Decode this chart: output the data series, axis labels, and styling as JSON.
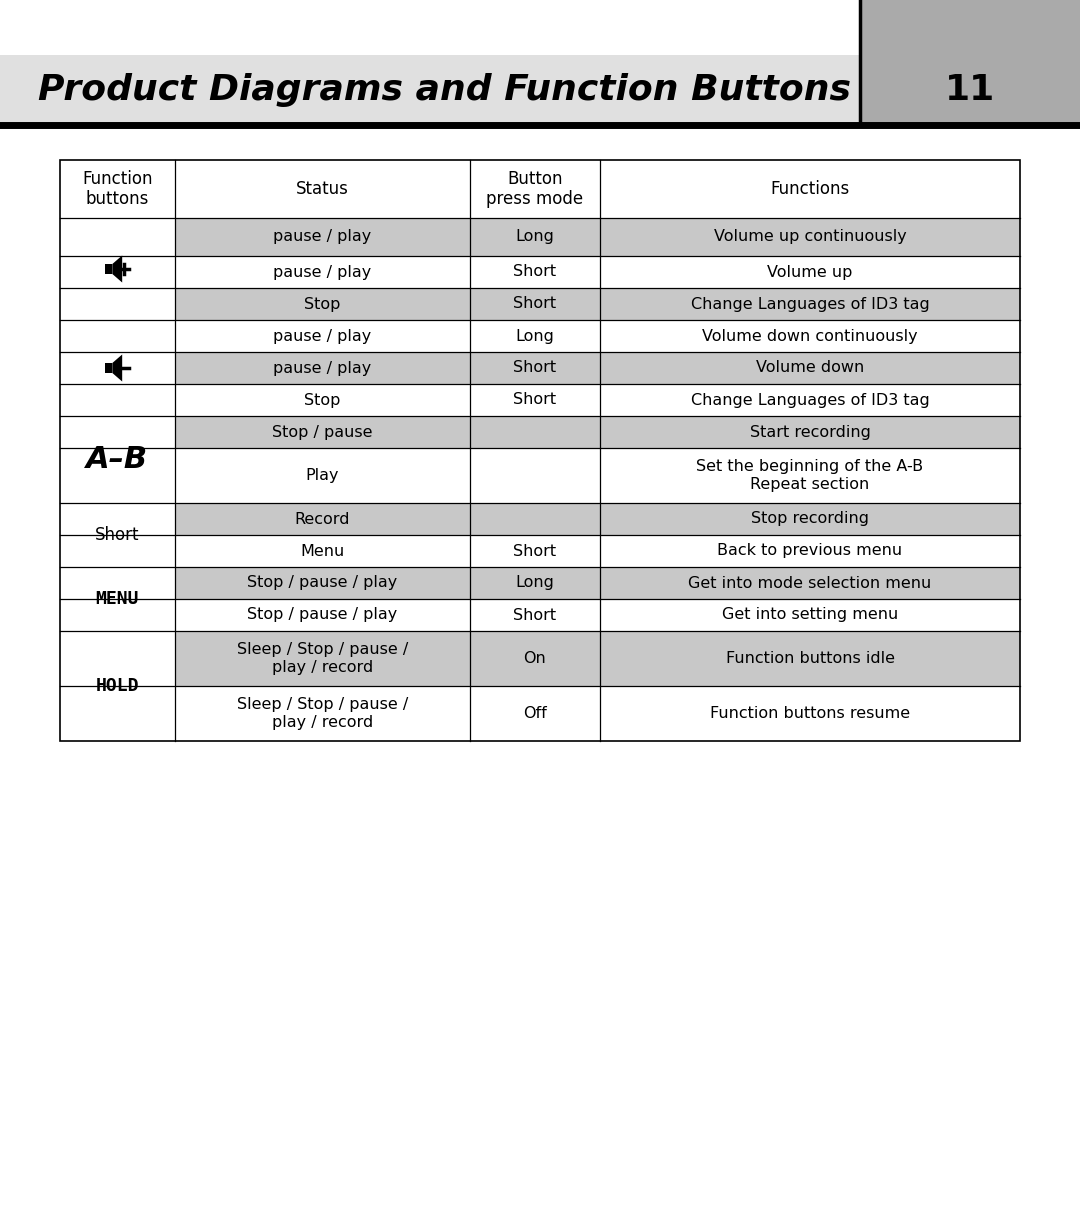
{
  "title": "Product Diagrams and Function Buttons",
  "page_number": "11",
  "header_bg_light": "#e0e0e0",
  "header_bg_dark": "#aaaaaa",
  "page_bg": "#ffffff",
  "row_bg_white": "#ffffff",
  "row_bg_gray": "#c8c8c8",
  "slash": " / ",
  "col_headers": [
    "Function\nbuttons",
    "Status",
    "Button\npress mode",
    "Functions"
  ],
  "row_texts": [
    [
      "pause / play",
      "Long",
      "Volume up continuously"
    ],
    [
      "pause / play",
      "Short",
      "Volume up"
    ],
    [
      "Stop",
      "Short",
      "Change Languages of ID3 tag"
    ],
    [
      "pause / play",
      "Long",
      "Volume down continuously"
    ],
    [
      "pause / play",
      "Short",
      "Volume down"
    ],
    [
      "Stop",
      "Short",
      "Change Languages of ID3 tag"
    ],
    [
      "Stop / pause",
      "",
      "Start recording"
    ],
    [
      "Play",
      "",
      "Set the beginning of the A-B\nRepeat section"
    ],
    [
      "Record",
      "",
      "Stop recording"
    ],
    [
      "Menu",
      "Short",
      "Back to previous menu"
    ],
    [
      "Stop / pause / play",
      "Long",
      "Get into mode selection menu"
    ],
    [
      "Stop / pause / play",
      "Short",
      "Get into setting menu"
    ],
    [
      "Sleep / Stop / pause /\nplay / record",
      "On",
      "Function buttons idle"
    ],
    [
      "Sleep / Stop / pause /\nplay / record",
      "Off",
      "Function buttons resume"
    ]
  ],
  "row_bgs": [
    "#c8c8c8",
    "#ffffff",
    "#c8c8c8",
    "#ffffff",
    "#c8c8c8",
    "#ffffff",
    "#c8c8c8",
    "#ffffff",
    "#c8c8c8",
    "#ffffff",
    "#c8c8c8",
    "#ffffff",
    "#c8c8c8",
    "#ffffff"
  ],
  "icon_groups": [
    {
      "rows": [
        0,
        1,
        2
      ],
      "type": "vol_up"
    },
    {
      "rows": [
        3,
        4,
        5
      ],
      "type": "vol_down"
    },
    {
      "rows": [
        6,
        7,
        8,
        9
      ],
      "type": "ab_short"
    },
    {
      "rows": [
        10,
        11
      ],
      "type": "menu"
    },
    {
      "rows": [
        12,
        13
      ],
      "type": "hold"
    }
  ]
}
